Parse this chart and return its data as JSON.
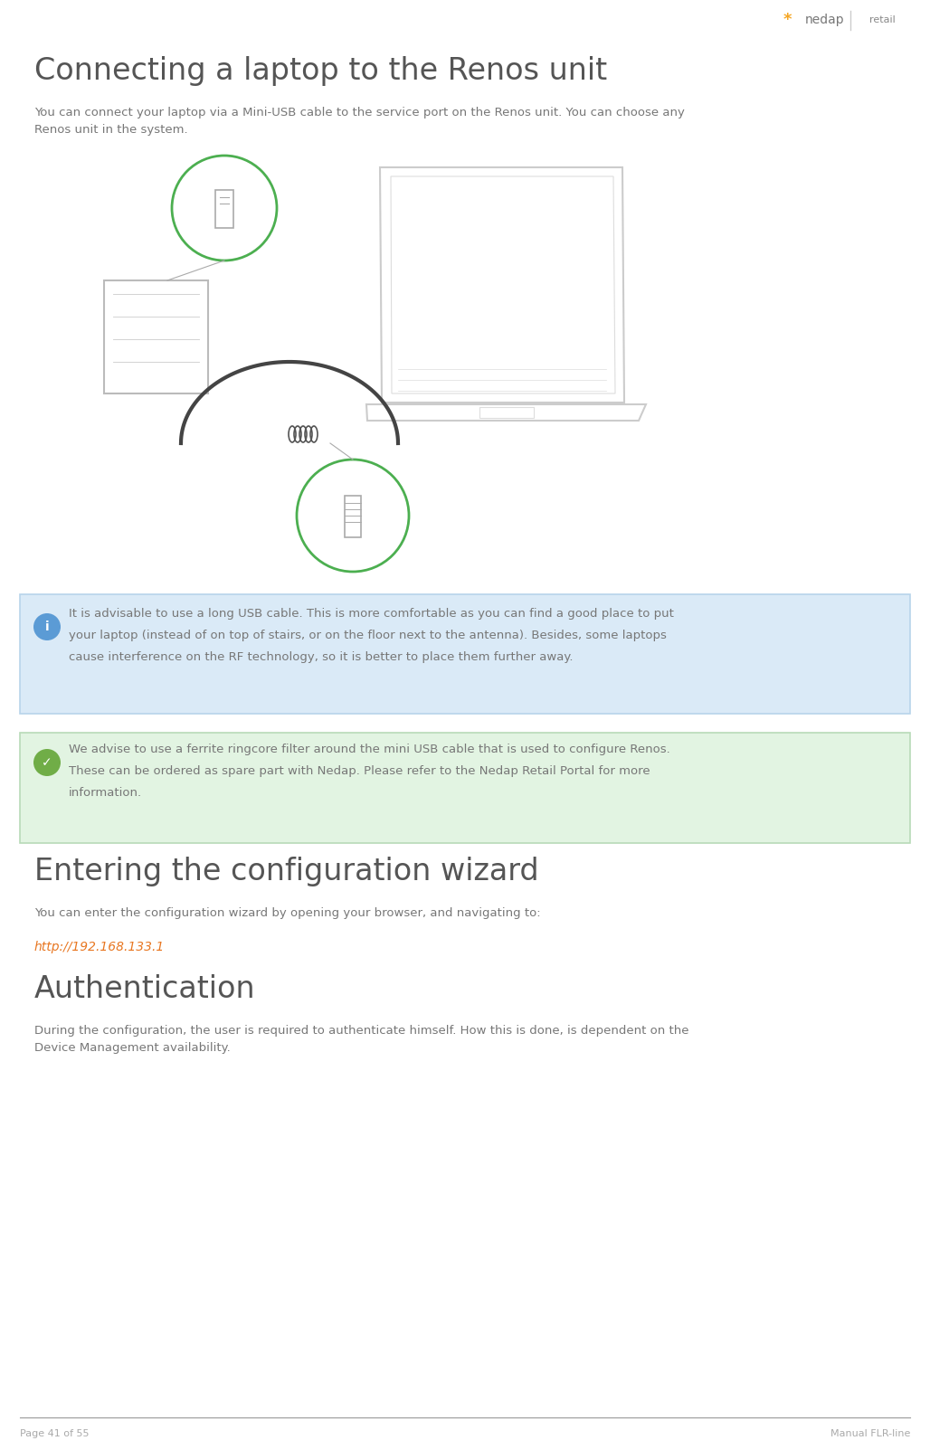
{
  "page_bg": "#ffffff",
  "title1": "Connecting a laptop to the Renos unit",
  "title2": "Entering the configuration wizard",
  "title3": "Authentication",
  "para1_line1": "You can connect your laptop via a Mini-USB cable to the service port on the Renos unit. You can choose any",
  "para1_line2": "Renos unit in the system.",
  "info_box_text_line1": "It is advisable to use a long USB cable. This is more comfortable as you can find a good place to put",
  "info_box_text_line2": "your laptop (instead of on top of stairs, or on the floor next to the antenna). Besides, some laptops",
  "info_box_text_line3": "cause interference on the RF technology, so it is better to place them further away.",
  "info_box_bg": "#daeaf7",
  "info_box_border": "#b8d4ea",
  "check_box_text_line1": "We advise to use a ferrite ringcore filter around the mini USB cable that is used to configure Renos.",
  "check_box_text_line2": "These can be ordered as spare part with Nedap. Please refer to the Nedap Retail Portal for more",
  "check_box_text_line3": "information.",
  "check_box_bg": "#e2f4e2",
  "check_box_border": "#b8dab8",
  "para2": "You can enter the configuration wizard by opening your browser, and navigating to:",
  "url": "http://192.168.133.1",
  "para3_line1": "During the configuration, the user is required to authenticate himself. How this is done, is dependent on the",
  "para3_line2": "Device Management availability.",
  "footer_left": "Page 41 of 55",
  "footer_right": "Manual FLR-line",
  "footer_line_color": "#999999",
  "footer_text_color": "#aaaaaa",
  "title_color": "#555555",
  "body_color": "#777777",
  "url_color": "#e87722",
  "logo_star_color": "#f5a623",
  "logo_text_color": "#888888",
  "logo_nedap_color": "#777777",
  "info_icon_bg": "#5b9bd5",
  "check_icon_bg": "#70ad47"
}
